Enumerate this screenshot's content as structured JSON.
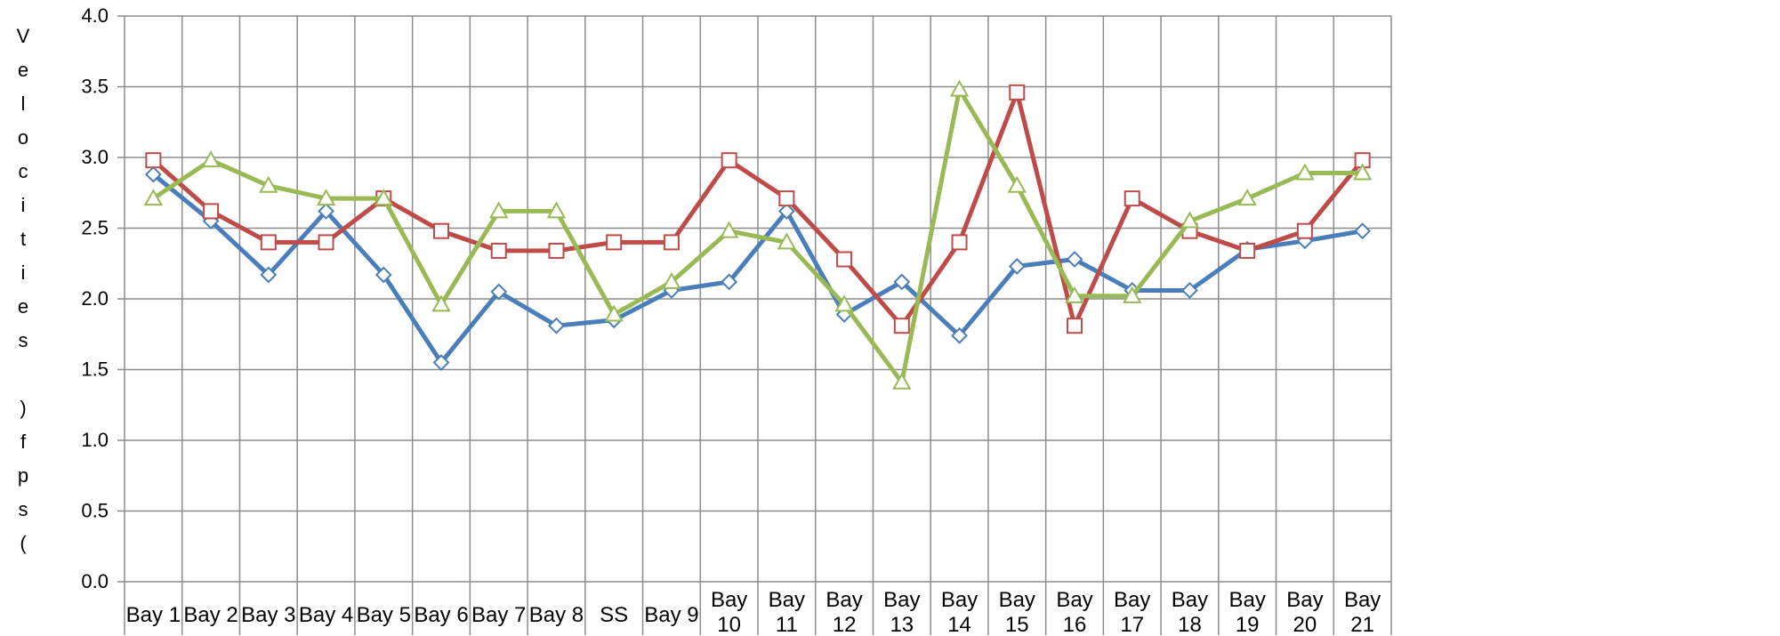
{
  "chart_data": {
    "type": "line",
    "title": "",
    "ylabel": "Velocities (fps)",
    "xlabel": "",
    "ylim": [
      0,
      4.0
    ],
    "yticks": [
      "0.0",
      "0.5",
      "1.0",
      "1.5",
      "2.0",
      "2.5",
      "3.0",
      "3.5",
      "4.0"
    ],
    "grid": true,
    "legend": "none",
    "categories": [
      "Bay 1",
      "Bay 2",
      "Bay 3",
      "Bay 4",
      "Bay 5",
      "Bay 6",
      "Bay 7",
      "Bay 8",
      "SS",
      "Bay 9",
      "Bay 10",
      "Bay 11",
      "Bay 12",
      "Bay 13",
      "Bay 14",
      "Bay 15",
      "Bay 16",
      "Bay 17",
      "Bay 18",
      "Bay 19",
      "Bay 20",
      "Bay 21"
    ],
    "series": [
      {
        "color": "#4a7ebb",
        "marker": "diamond",
        "values": [
          2.88,
          2.55,
          2.17,
          2.62,
          2.17,
          1.55,
          2.05,
          1.81,
          1.85,
          2.06,
          2.12,
          2.62,
          1.89,
          2.12,
          1.74,
          2.23,
          2.28,
          2.06,
          2.06,
          2.35,
          2.41,
          2.48
        ]
      },
      {
        "color": "#be4b48",
        "marker": "square",
        "values": [
          2.98,
          2.62,
          2.4,
          2.4,
          2.71,
          2.48,
          2.34,
          2.34,
          2.4,
          2.4,
          2.98,
          2.71,
          2.28,
          1.81,
          2.4,
          3.46,
          1.81,
          2.71,
          2.48,
          2.34,
          2.48,
          2.98
        ]
      },
      {
        "color": "#98b954",
        "marker": "triangle",
        "values": [
          2.71,
          2.98,
          2.8,
          2.71,
          2.71,
          1.96,
          2.62,
          2.62,
          1.89,
          2.12,
          2.48,
          2.4,
          1.96,
          1.41,
          3.48,
          2.8,
          2.02,
          2.02,
          2.55,
          2.71,
          2.89,
          2.89
        ]
      }
    ]
  }
}
